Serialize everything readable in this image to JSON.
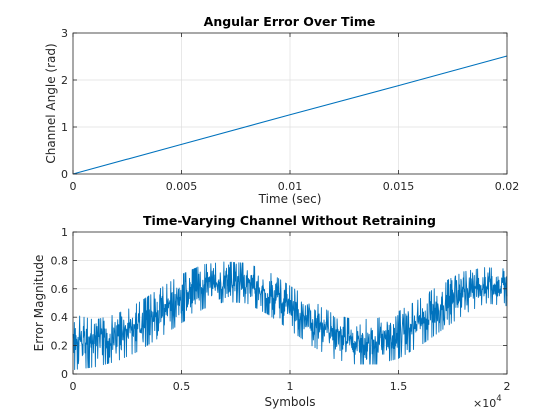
{
  "figure": {
    "background": "#ffffff"
  },
  "chart_data": [
    {
      "type": "line",
      "title": "Angular Error Over Time",
      "xlabel": "Time (sec)",
      "ylabel": "Channel Angle (rad)",
      "xlim": [
        0,
        0.02
      ],
      "ylim": [
        0,
        3
      ],
      "xticks": [
        0,
        0.005,
        0.01,
        0.015,
        0.02
      ],
      "xtick_labels": [
        "0",
        "0.005",
        "0.01",
        "0.015",
        "0.02"
      ],
      "yticks": [
        0,
        1,
        2,
        3
      ],
      "ytick_labels": [
        "0",
        "1",
        "2",
        "3"
      ],
      "grid": true,
      "series": [
        {
          "color": "#0072bd",
          "x": [
            0,
            0.005,
            0.01,
            0.015,
            0.02
          ],
          "y": [
            0,
            0.63,
            1.26,
            1.88,
            2.51
          ]
        }
      ]
    },
    {
      "type": "line",
      "title": "Time-Varying Channel Without Retraining",
      "xlabel": "Symbols",
      "ylabel": "Error Magnitude",
      "xlim": [
        0,
        20000
      ],
      "ylim": [
        0,
        1
      ],
      "xticks": [
        0,
        5000,
        10000,
        15000,
        20000
      ],
      "xtick_labels": [
        "0",
        "0.5",
        "1",
        "1.5",
        "2"
      ],
      "x_exponent_label": "×10",
      "x_exponent_power": "4",
      "yticks": [
        0,
        0.2,
        0.4,
        0.6,
        0.8,
        1
      ],
      "ytick_labels": [
        "0",
        "0.2",
        "0.4",
        "0.6",
        "0.8",
        "1"
      ],
      "grid": true,
      "series": [
        {
          "color": "#0072bd",
          "style": "dense noisy band",
          "x": [
            0,
            1000,
            2000,
            3000,
            4000,
            5000,
            6000,
            7000,
            8000,
            9000,
            10000,
            11000,
            12000,
            13000,
            14000,
            15000,
            16000,
            17000,
            18000,
            19000,
            20000
          ],
          "y_center": [
            0.22,
            0.23,
            0.27,
            0.34,
            0.43,
            0.53,
            0.62,
            0.65,
            0.64,
            0.57,
            0.47,
            0.36,
            0.27,
            0.23,
            0.23,
            0.28,
            0.37,
            0.48,
            0.58,
            0.63,
            0.62
          ],
          "y_upper": [
            0.42,
            0.38,
            0.42,
            0.5,
            0.6,
            0.7,
            0.77,
            0.79,
            0.78,
            0.72,
            0.62,
            0.52,
            0.42,
            0.38,
            0.39,
            0.44,
            0.53,
            0.64,
            0.72,
            0.75,
            0.74
          ],
          "y_lower": [
            0.03,
            0.05,
            0.09,
            0.16,
            0.26,
            0.36,
            0.46,
            0.51,
            0.5,
            0.42,
            0.31,
            0.2,
            0.11,
            0.07,
            0.07,
            0.11,
            0.2,
            0.31,
            0.42,
            0.5,
            0.48
          ]
        }
      ]
    }
  ]
}
